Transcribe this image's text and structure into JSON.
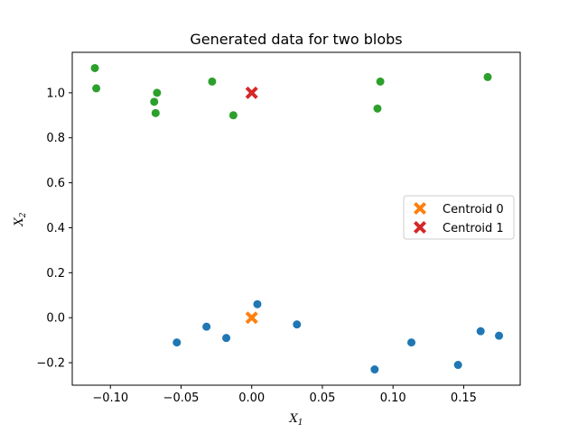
{
  "chart_data": {
    "type": "scatter",
    "title": "Generated data for two blobs",
    "xlabel": "X",
    "xlabel_sub": "1",
    "ylabel": "X",
    "ylabel_sub": "2",
    "xlim": [
      -0.127,
      0.19
    ],
    "ylim": [
      -0.3,
      1.18
    ],
    "xticks": [
      -0.1,
      -0.05,
      0.0,
      0.05,
      0.1,
      0.15
    ],
    "xtick_labels": [
      "−0.10",
      "−0.05",
      "0.00",
      "0.05",
      "0.10",
      "0.15"
    ],
    "yticks": [
      -0.2,
      0.0,
      0.2,
      0.4,
      0.6,
      0.8,
      1.0
    ],
    "ytick_labels": [
      "−0.2",
      "0.0",
      "0.2",
      "0.4",
      "0.6",
      "0.8",
      "1.0"
    ],
    "grid": false,
    "legend_position": "center-right",
    "series": [
      {
        "marker": "circle",
        "color": "#1f77b4",
        "x": [
          -0.053,
          -0.032,
          -0.018,
          0.004,
          0.032,
          0.087,
          0.113,
          0.146,
          0.162,
          0.175
        ],
        "y": [
          -0.11,
          -0.04,
          -0.09,
          0.06,
          -0.03,
          -0.23,
          -0.11,
          -0.21,
          -0.06,
          -0.08
        ]
      },
      {
        "marker": "circle",
        "color": "#2ca02c",
        "x": [
          -0.111,
          -0.11,
          -0.069,
          -0.068,
          -0.067,
          -0.028,
          -0.013,
          0.089,
          0.091,
          0.167
        ],
        "y": [
          1.11,
          1.02,
          0.96,
          0.91,
          1.0,
          1.05,
          0.9,
          0.93,
          1.05,
          1.07
        ]
      },
      {
        "name": "Centroid 0",
        "marker": "x",
        "color": "#ff7f0e",
        "x": [
          0.0
        ],
        "y": [
          0.0
        ]
      },
      {
        "name": "Centroid 1",
        "marker": "x",
        "color": "#d62728",
        "x": [
          0.0
        ],
        "y": [
          1.0
        ]
      }
    ]
  }
}
